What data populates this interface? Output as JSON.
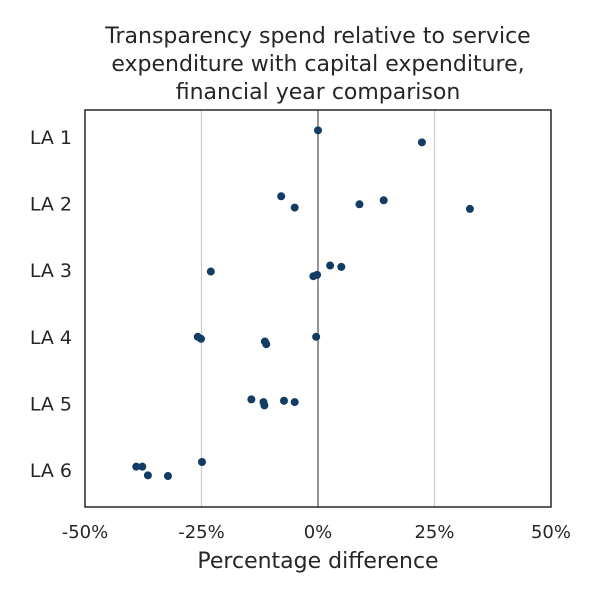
{
  "chart_data": {
    "type": "scatter",
    "title": [
      "Transparency spend relative to service",
      "expenditure with capital expenditure,",
      "financial year comparison"
    ],
    "xlabel": "Percentage difference",
    "ylabel": "",
    "xlim": [
      -50,
      50
    ],
    "x_ticks": [
      {
        "value": -50,
        "label": "-50%"
      },
      {
        "value": -25,
        "label": "-25%"
      },
      {
        "value": 0,
        "label": "0%"
      },
      {
        "value": 25,
        "label": "25%"
      },
      {
        "value": 50,
        "label": "50%"
      }
    ],
    "gridlines_x": [
      -25,
      25
    ],
    "zero_line": 0,
    "grid": true,
    "categories": [
      "LA 1",
      "LA 2",
      "LA 3",
      "LA 4",
      "LA 5",
      "LA 6"
    ],
    "point_color": "#133c64",
    "points": [
      {
        "category": "LA 1",
        "x": 0.0,
        "jitter": -0.1
      },
      {
        "category": "LA 1",
        "x": 22.3,
        "jitter": 0.08
      },
      {
        "category": "LA 2",
        "x": -7.9,
        "jitter": -0.11
      },
      {
        "category": "LA 2",
        "x": -5.0,
        "jitter": 0.06
      },
      {
        "category": "LA 2",
        "x": 8.9,
        "jitter": 0.01
      },
      {
        "category": "LA 2",
        "x": 14.1,
        "jitter": -0.05
      },
      {
        "category": "LA 2",
        "x": 32.6,
        "jitter": 0.08
      },
      {
        "category": "LA 3",
        "x": -23.0,
        "jitter": 0.02
      },
      {
        "category": "LA 3",
        "x": -1.0,
        "jitter": 0.09
      },
      {
        "category": "LA 3",
        "x": -0.2,
        "jitter": 0.07
      },
      {
        "category": "LA 3",
        "x": 2.6,
        "jitter": -0.07
      },
      {
        "category": "LA 3",
        "x": 5.0,
        "jitter": -0.05
      },
      {
        "category": "LA 4",
        "x": -25.8,
        "jitter": 0.0
      },
      {
        "category": "LA 4",
        "x": -25.1,
        "jitter": 0.03
      },
      {
        "category": "LA 4",
        "x": -11.4,
        "jitter": 0.07
      },
      {
        "category": "LA 4",
        "x": -11.1,
        "jitter": 0.11
      },
      {
        "category": "LA 4",
        "x": -0.4,
        "jitter": 0.0
      },
      {
        "category": "LA 5",
        "x": -14.3,
        "jitter": -0.06
      },
      {
        "category": "LA 5",
        "x": -11.7,
        "jitter": -0.02
      },
      {
        "category": "LA 5",
        "x": -11.5,
        "jitter": 0.03
      },
      {
        "category": "LA 5",
        "x": -7.3,
        "jitter": -0.04
      },
      {
        "category": "LA 5",
        "x": -5.0,
        "jitter": -0.02
      },
      {
        "category": "LA 6",
        "x": -39.0,
        "jitter": -0.05
      },
      {
        "category": "LA 6",
        "x": -37.7,
        "jitter": -0.05
      },
      {
        "category": "LA 6",
        "x": -36.5,
        "jitter": 0.08
      },
      {
        "category": "LA 6",
        "x": -32.2,
        "jitter": 0.09
      },
      {
        "category": "LA 6",
        "x": -24.9,
        "jitter": -0.12
      }
    ]
  }
}
